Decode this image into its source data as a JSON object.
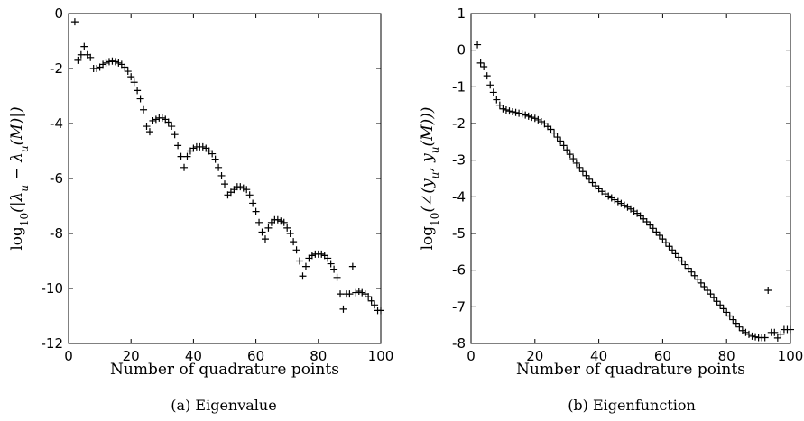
{
  "chart_data": [
    {
      "type": "scatter",
      "caption": "(a)  Eigenvalue",
      "xlabel": "Number of quadrature points",
      "ylabel": "log10(|λu − λu(M)|)",
      "ylabel_parts": {
        "func": "log",
        "sub": "10",
        "body": "(|λ",
        "sub2": "u",
        "mid": " − λ",
        "sub3": "u",
        "tail": "(M)|)"
      },
      "xlim": [
        0,
        100
      ],
      "ylim": [
        -12,
        0
      ],
      "xticks": [
        0,
        20,
        40,
        60,
        80,
        100
      ],
      "yticks": [
        -12,
        -10,
        -8,
        -6,
        -4,
        -2,
        0
      ],
      "marker": "+",
      "series": [
        {
          "points": [
            [
              2,
              -0.3
            ],
            [
              3,
              -1.7
            ],
            [
              4,
              -1.5
            ],
            [
              5,
              -1.2
            ],
            [
              6,
              -1.5
            ],
            [
              7,
              -1.6
            ],
            [
              8,
              -2.0
            ],
            [
              9,
              -2.0
            ],
            [
              10,
              -1.95
            ],
            [
              11,
              -1.85
            ],
            [
              12,
              -1.8
            ],
            [
              13,
              -1.75
            ],
            [
              14,
              -1.73
            ],
            [
              15,
              -1.75
            ],
            [
              16,
              -1.8
            ],
            [
              17,
              -1.85
            ],
            [
              18,
              -1.95
            ],
            [
              19,
              -2.1
            ],
            [
              20,
              -2.3
            ],
            [
              21,
              -2.5
            ],
            [
              22,
              -2.8
            ],
            [
              23,
              -3.1
            ],
            [
              24,
              -3.5
            ],
            [
              25,
              -4.1
            ],
            [
              26,
              -4.3
            ],
            [
              27,
              -3.9
            ],
            [
              28,
              -3.85
            ],
            [
              29,
              -3.8
            ],
            [
              30,
              -3.8
            ],
            [
              31,
              -3.85
            ],
            [
              32,
              -3.95
            ],
            [
              33,
              -4.1
            ],
            [
              34,
              -4.4
            ],
            [
              35,
              -4.8
            ],
            [
              36,
              -5.2
            ],
            [
              37,
              -5.6
            ],
            [
              38,
              -5.2
            ],
            [
              39,
              -5.0
            ],
            [
              40,
              -4.9
            ],
            [
              41,
              -4.85
            ],
            [
              42,
              -4.85
            ],
            [
              43,
              -4.85
            ],
            [
              44,
              -4.9
            ],
            [
              45,
              -5.0
            ],
            [
              46,
              -5.1
            ],
            [
              47,
              -5.3
            ],
            [
              48,
              -5.6
            ],
            [
              49,
              -5.9
            ],
            [
              50,
              -6.2
            ],
            [
              51,
              -6.6
            ],
            [
              52,
              -6.5
            ],
            [
              53,
              -6.4
            ],
            [
              54,
              -6.3
            ],
            [
              55,
              -6.3
            ],
            [
              56,
              -6.35
            ],
            [
              57,
              -6.4
            ],
            [
              58,
              -6.6
            ],
            [
              59,
              -6.9
            ],
            [
              60,
              -7.2
            ],
            [
              61,
              -7.6
            ],
            [
              62,
              -7.95
            ],
            [
              63,
              -8.2
            ],
            [
              64,
              -7.8
            ],
            [
              65,
              -7.6
            ],
            [
              66,
              -7.5
            ],
            [
              67,
              -7.5
            ],
            [
              68,
              -7.55
            ],
            [
              69,
              -7.6
            ],
            [
              70,
              -7.8
            ],
            [
              71,
              -8.0
            ],
            [
              72,
              -8.3
            ],
            [
              73,
              -8.6
            ],
            [
              74,
              -9.0
            ],
            [
              75,
              -9.55
            ],
            [
              76,
              -9.2
            ],
            [
              77,
              -8.9
            ],
            [
              78,
              -8.8
            ],
            [
              79,
              -8.75
            ],
            [
              80,
              -8.75
            ],
            [
              81,
              -8.75
            ],
            [
              82,
              -8.8
            ],
            [
              83,
              -8.9
            ],
            [
              84,
              -9.1
            ],
            [
              85,
              -9.3
            ],
            [
              86,
              -9.6
            ],
            [
              87,
              -10.2
            ],
            [
              88,
              -10.75
            ],
            [
              89,
              -10.2
            ],
            [
              90,
              -10.2
            ],
            [
              91,
              -9.2
            ],
            [
              92,
              -10.15
            ],
            [
              93,
              -10.1
            ],
            [
              94,
              -10.15
            ],
            [
              95,
              -10.2
            ],
            [
              96,
              -10.3
            ],
            [
              97,
              -10.45
            ],
            [
              98,
              -10.6
            ],
            [
              99,
              -10.8
            ],
            [
              100,
              -10.8
            ]
          ]
        }
      ]
    },
    {
      "type": "scatter",
      "caption": "(b)  Eigenfunction",
      "xlabel": "Number of quadrature points",
      "ylabel": "log10(∠(yu, yu(M)))",
      "ylabel_parts": {
        "func": "log",
        "sub": "10",
        "body": "(∠(y",
        "sub2": "u",
        "mid": ", y",
        "sub3": "u",
        "tail": "(M)))"
      },
      "xlim": [
        0,
        100
      ],
      "ylim": [
        -8,
        1
      ],
      "xticks": [
        0,
        20,
        40,
        60,
        80,
        100
      ],
      "yticks": [
        -8,
        -7,
        -6,
        -5,
        -4,
        -3,
        -2,
        -1,
        0,
        1
      ],
      "marker": "+",
      "series": [
        {
          "points": [
            [
              2,
              0.15
            ],
            [
              3,
              -0.35
            ],
            [
              4,
              -0.45
            ],
            [
              5,
              -0.7
            ],
            [
              6,
              -0.95
            ],
            [
              7,
              -1.15
            ],
            [
              8,
              -1.35
            ],
            [
              9,
              -1.5
            ],
            [
              10,
              -1.6
            ],
            [
              11,
              -1.63
            ],
            [
              12,
              -1.66
            ],
            [
              13,
              -1.68
            ],
            [
              14,
              -1.7
            ],
            [
              15,
              -1.72
            ],
            [
              16,
              -1.74
            ],
            [
              17,
              -1.77
            ],
            [
              18,
              -1.8
            ],
            [
              19,
              -1.83
            ],
            [
              20,
              -1.86
            ],
            [
              21,
              -1.9
            ],
            [
              22,
              -1.95
            ],
            [
              23,
              -2.01
            ],
            [
              24,
              -2.08
            ],
            [
              25,
              -2.16
            ],
            [
              26,
              -2.26
            ],
            [
              27,
              -2.37
            ],
            [
              28,
              -2.48
            ],
            [
              29,
              -2.6
            ],
            [
              30,
              -2.72
            ],
            [
              31,
              -2.84
            ],
            [
              32,
              -2.96
            ],
            [
              33,
              -3.08
            ],
            [
              34,
              -3.2
            ],
            [
              35,
              -3.31
            ],
            [
              36,
              -3.42
            ],
            [
              37,
              -3.52
            ],
            [
              38,
              -3.61
            ],
            [
              39,
              -3.7
            ],
            [
              40,
              -3.78
            ],
            [
              41,
              -3.85
            ],
            [
              42,
              -3.92
            ],
            [
              43,
              -3.98
            ],
            [
              44,
              -4.03
            ],
            [
              45,
              -4.08
            ],
            [
              46,
              -4.13
            ],
            [
              47,
              -4.18
            ],
            [
              48,
              -4.23
            ],
            [
              49,
              -4.28
            ],
            [
              50,
              -4.33
            ],
            [
              51,
              -4.39
            ],
            [
              52,
              -4.45
            ],
            [
              53,
              -4.52
            ],
            [
              54,
              -4.6
            ],
            [
              55,
              -4.68
            ],
            [
              56,
              -4.77
            ],
            [
              57,
              -4.86
            ],
            [
              58,
              -4.96
            ],
            [
              59,
              -5.05
            ],
            [
              60,
              -5.15
            ],
            [
              61,
              -5.25
            ],
            [
              62,
              -5.35
            ],
            [
              63,
              -5.45
            ],
            [
              64,
              -5.55
            ],
            [
              65,
              -5.65
            ],
            [
              66,
              -5.75
            ],
            [
              67,
              -5.85
            ],
            [
              68,
              -5.95
            ],
            [
              69,
              -6.05
            ],
            [
              70,
              -6.15
            ],
            [
              71,
              -6.25
            ],
            [
              72,
              -6.35
            ],
            [
              73,
              -6.45
            ],
            [
              74,
              -6.55
            ],
            [
              75,
              -6.65
            ],
            [
              76,
              -6.75
            ],
            [
              77,
              -6.85
            ],
            [
              78,
              -6.95
            ],
            [
              79,
              -7.05
            ],
            [
              80,
              -7.15
            ],
            [
              81,
              -7.25
            ],
            [
              82,
              -7.35
            ],
            [
              83,
              -7.45
            ],
            [
              84,
              -7.55
            ],
            [
              85,
              -7.65
            ],
            [
              86,
              -7.7
            ],
            [
              87,
              -7.75
            ],
            [
              88,
              -7.8
            ],
            [
              89,
              -7.82
            ],
            [
              90,
              -7.84
            ],
            [
              91,
              -7.84
            ],
            [
              92,
              -7.84
            ],
            [
              93,
              -6.55
            ],
            [
              94,
              -7.7
            ],
            [
              95,
              -7.7
            ],
            [
              96,
              -7.85
            ],
            [
              97,
              -7.75
            ],
            [
              98,
              -7.62
            ],
            [
              99,
              -7.62
            ],
            [
              100,
              -7.62
            ]
          ]
        }
      ]
    }
  ]
}
